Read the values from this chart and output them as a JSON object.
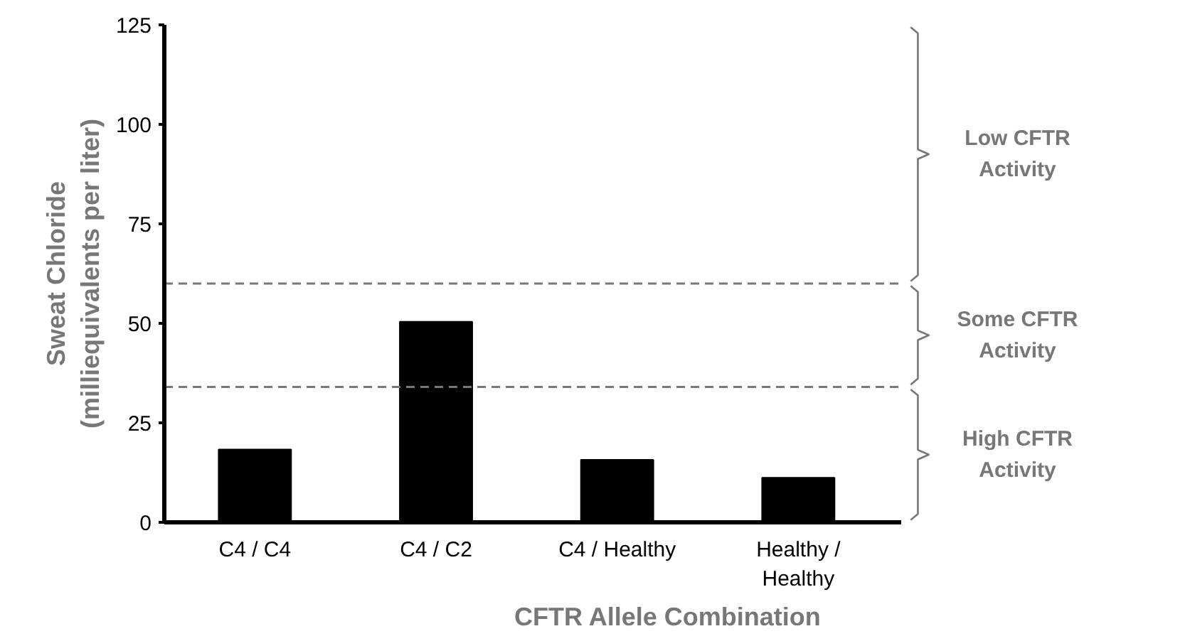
{
  "chart_data": {
    "type": "bar",
    "xlabel": "CFTR Allele Combination",
    "ylabel": "Sweat Chloride\n(milliequivalents per liter)",
    "categories": [
      "C4 / C4",
      "C4 / C2",
      "C4 / Healthy",
      "Healthy / Healthy"
    ],
    "values": [
      18.3,
      50.4,
      15.7,
      11.2
    ],
    "color": "#000000",
    "ylim": [
      0,
      125
    ],
    "yticks": [
      0,
      25,
      50,
      75,
      100,
      125
    ],
    "grid": false,
    "ref_lines": [
      {
        "axis": "y",
        "value": 60,
        "color": "#777777",
        "line_style": "dashed"
      },
      {
        "axis": "y",
        "value": 34,
        "color": "#777777",
        "line_style": "dashed"
      }
    ],
    "annotations": [
      "Low CFTR Activity",
      "Some CFTR Activity",
      "High CFTR Activity"
    ]
  }
}
